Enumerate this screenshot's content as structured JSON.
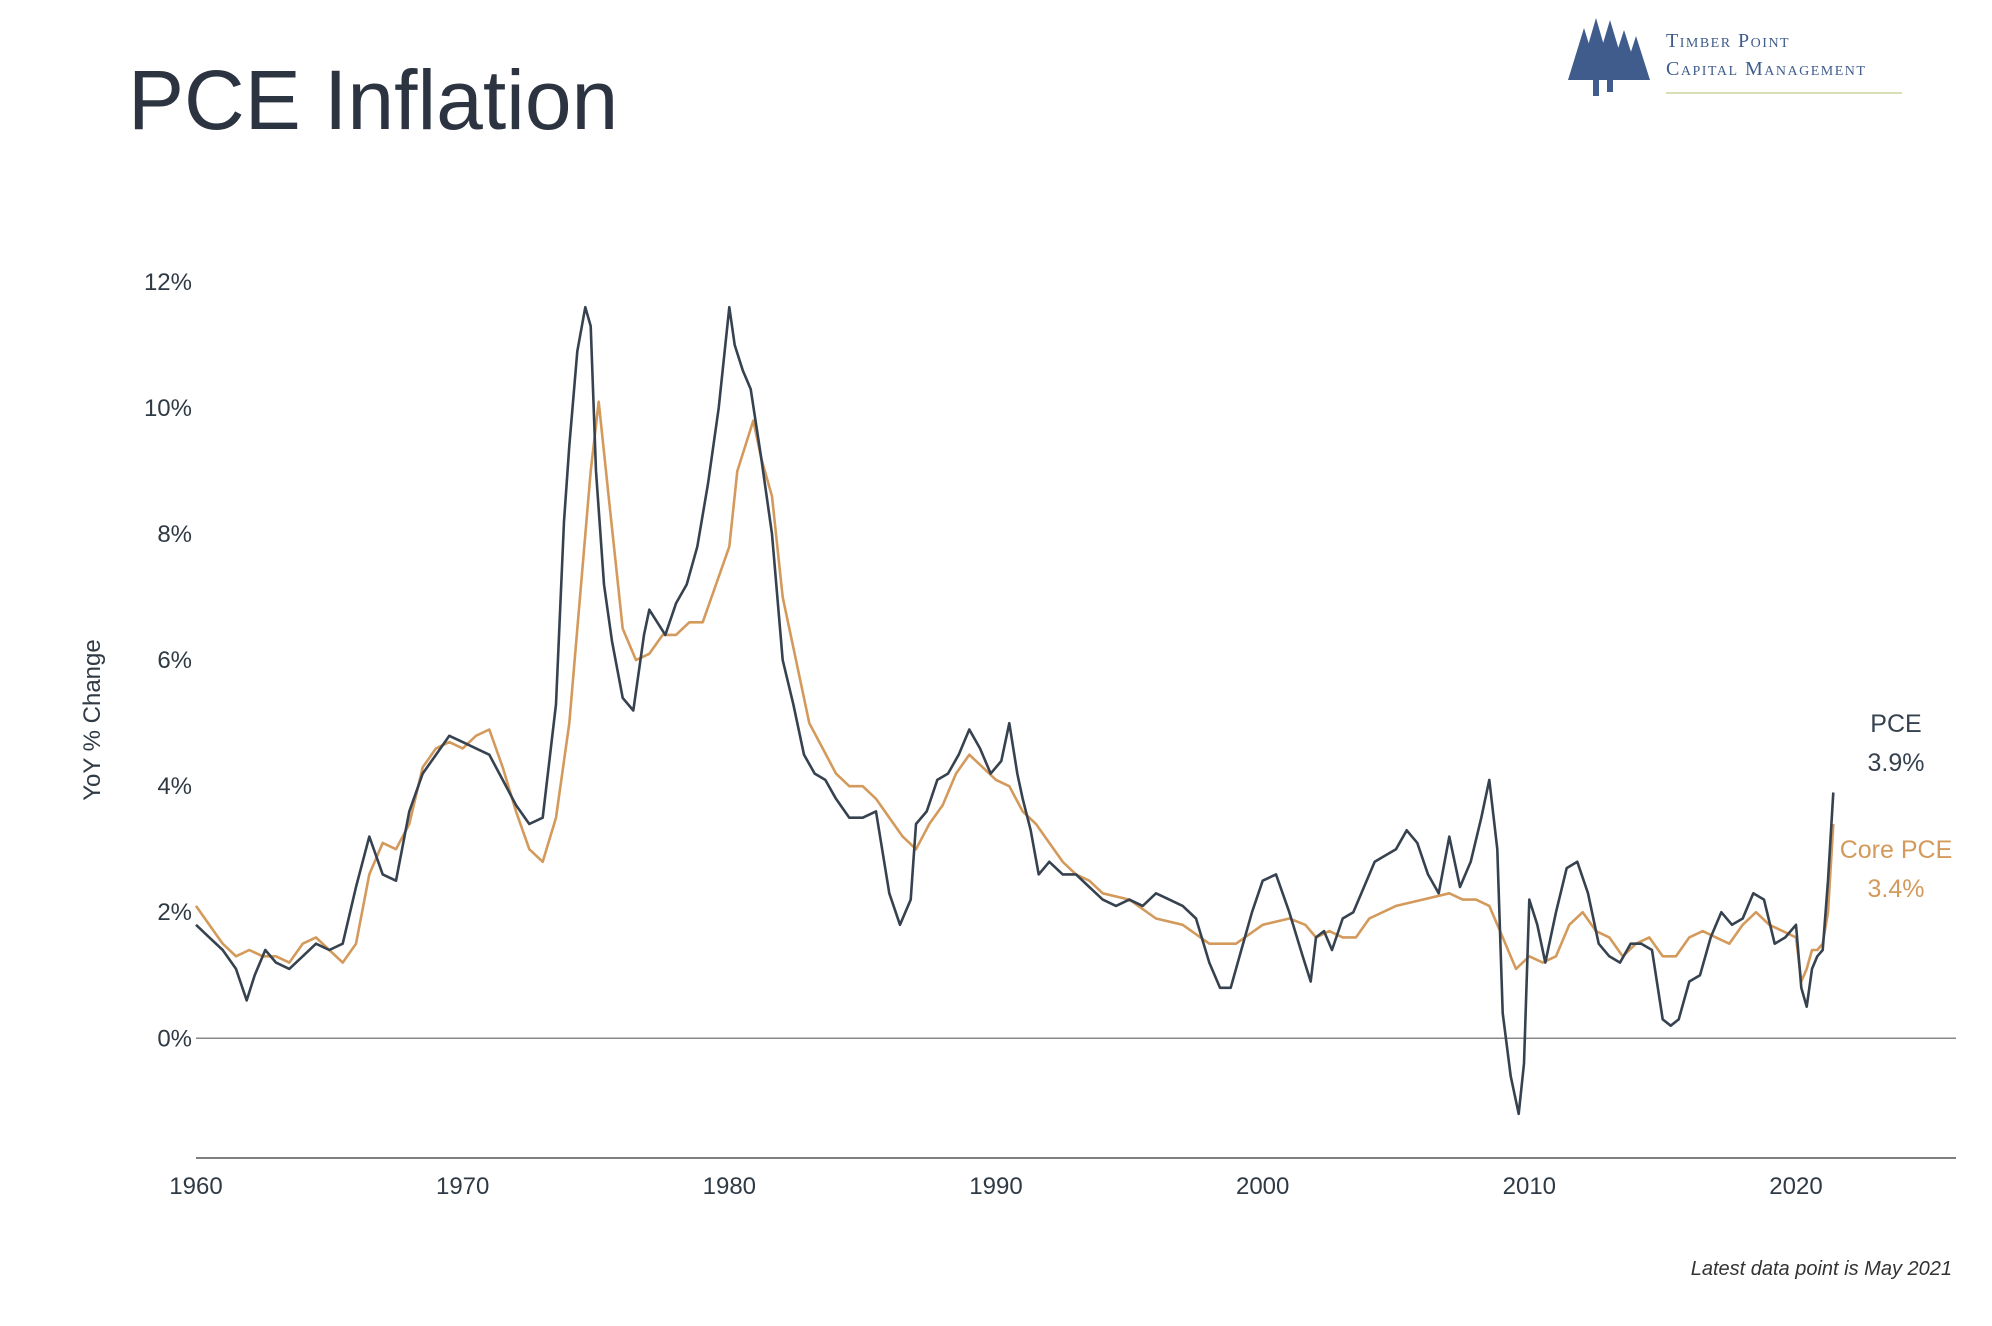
{
  "title": "PCE Inflation",
  "logo": {
    "line1": "Timber Point",
    "line2": "Capital Management",
    "icon": "pine-trees-icon"
  },
  "footnote": "Latest data point is May 2021",
  "colors": {
    "pce": "#36424f",
    "core": "#d39a5c",
    "zero_line": "#888888",
    "axis": "#555555",
    "logo": "#3f5c8c"
  },
  "end_labels": {
    "pce_name": "PCE",
    "pce_value": "3.9%",
    "core_name": "Core PCE",
    "core_value": "3.4%"
  },
  "chart_data": {
    "type": "line",
    "title": "",
    "xlabel": "",
    "ylabel": "YoY % Change",
    "xlim": [
      1960,
      2026
    ],
    "ylim": [
      -1.9,
      12
    ],
    "x_ticks": [
      1960,
      1970,
      1980,
      1990,
      2000,
      2010,
      2020
    ],
    "x_tick_labels": [
      "1960",
      "1970",
      "1980",
      "1990",
      "2000",
      "2010",
      "2020"
    ],
    "y_ticks": [
      0,
      2,
      4,
      6,
      8,
      10,
      12
    ],
    "y_tick_labels": [
      "0%",
      "2%",
      "4%",
      "6%",
      "8%",
      "10%",
      "12%"
    ],
    "grid": false,
    "legend": "none",
    "series": [
      {
        "name": "PCE",
        "x": [
          1960.0,
          1960.5,
          1961.0,
          1961.5,
          1961.9,
          1962.2,
          1962.6,
          1963.0,
          1963.5,
          1964.0,
          1964.5,
          1965.0,
          1965.5,
          1966.0,
          1966.5,
          1967.0,
          1967.5,
          1968.0,
          1968.5,
          1969.0,
          1969.5,
          1970.0,
          1970.5,
          1971.0,
          1971.5,
          1972.0,
          1972.5,
          1973.0,
          1973.5,
          1973.8,
          1974.0,
          1974.3,
          1974.6,
          1974.8,
          1975.0,
          1975.3,
          1975.6,
          1976.0,
          1976.4,
          1976.8,
          1977.0,
          1977.3,
          1977.6,
          1978.0,
          1978.4,
          1978.8,
          1979.2,
          1979.6,
          1980.0,
          1980.2,
          1980.5,
          1980.8,
          1981.2,
          1981.6,
          1982.0,
          1982.4,
          1982.8,
          1983.2,
          1983.6,
          1984.0,
          1984.5,
          1985.0,
          1985.5,
          1986.0,
          1986.4,
          1986.8,
          1987.0,
          1987.4,
          1987.8,
          1988.2,
          1988.6,
          1989.0,
          1989.4,
          1989.8,
          1990.2,
          1990.5,
          1990.8,
          1991.0,
          1991.3,
          1991.6,
          1992.0,
          1992.5,
          1993.0,
          1993.5,
          1994.0,
          1994.5,
          1995.0,
          1995.5,
          1996.0,
          1996.5,
          1997.0,
          1997.5,
          1998.0,
          1998.4,
          1998.8,
          1999.2,
          1999.6,
          2000.0,
          2000.5,
          2001.0,
          2001.5,
          2001.8,
          2002.0,
          2002.3,
          2002.6,
          2003.0,
          2003.4,
          2003.8,
          2004.2,
          2004.6,
          2005.0,
          2005.4,
          2005.8,
          2006.2,
          2006.6,
          2007.0,
          2007.4,
          2007.8,
          2008.2,
          2008.5,
          2008.8,
          2009.0,
          2009.3,
          2009.6,
          2009.8,
          2010.0,
          2010.3,
          2010.6,
          2011.0,
          2011.4,
          2011.8,
          2012.2,
          2012.6,
          2013.0,
          2013.4,
          2013.8,
          2014.2,
          2014.6,
          2015.0,
          2015.3,
          2015.6,
          2016.0,
          2016.4,
          2016.8,
          2017.2,
          2017.6,
          2018.0,
          2018.4,
          2018.8,
          2019.2,
          2019.6,
          2020.0,
          2020.2,
          2020.4,
          2020.6,
          2020.8,
          2021.0,
          2021.2,
          2021.4
        ],
        "values": [
          1.8,
          1.6,
          1.4,
          1.1,
          0.6,
          1.0,
          1.4,
          1.2,
          1.1,
          1.3,
          1.5,
          1.4,
          1.5,
          2.4,
          3.2,
          2.6,
          2.5,
          3.6,
          4.2,
          4.5,
          4.8,
          4.7,
          4.6,
          4.5,
          4.1,
          3.7,
          3.4,
          3.5,
          5.3,
          8.2,
          9.4,
          10.9,
          11.6,
          11.3,
          9.0,
          7.2,
          6.3,
          5.4,
          5.2,
          6.4,
          6.8,
          6.6,
          6.4,
          6.9,
          7.2,
          7.8,
          8.8,
          10.0,
          11.6,
          11.0,
          10.6,
          10.3,
          9.2,
          8.0,
          6.0,
          5.3,
          4.5,
          4.2,
          4.1,
          3.8,
          3.5,
          3.5,
          3.6,
          2.3,
          1.8,
          2.2,
          3.4,
          3.6,
          4.1,
          4.2,
          4.5,
          4.9,
          4.6,
          4.2,
          4.4,
          5.0,
          4.2,
          3.8,
          3.3,
          2.6,
          2.8,
          2.6,
          2.6,
          2.4,
          2.2,
          2.1,
          2.2,
          2.1,
          2.3,
          2.2,
          2.1,
          1.9,
          1.2,
          0.8,
          0.8,
          1.4,
          2.0,
          2.5,
          2.6,
          2.0,
          1.3,
          0.9,
          1.6,
          1.7,
          1.4,
          1.9,
          2.0,
          2.4,
          2.8,
          2.9,
          3.0,
          3.3,
          3.1,
          2.6,
          2.3,
          3.2,
          2.4,
          2.8,
          3.5,
          4.1,
          3.0,
          0.4,
          -0.6,
          -1.2,
          -0.4,
          2.2,
          1.8,
          1.2,
          2.0,
          2.7,
          2.8,
          2.3,
          1.5,
          1.3,
          1.2,
          1.5,
          1.5,
          1.4,
          0.3,
          0.2,
          0.3,
          0.9,
          1.0,
          1.6,
          2.0,
          1.8,
          1.9,
          2.3,
          2.2,
          1.5,
          1.6,
          1.8,
          0.8,
          0.5,
          1.1,
          1.3,
          1.4,
          2.5,
          3.9
        ]
      },
      {
        "name": "Core PCE",
        "x": [
          1960.0,
          1960.5,
          1961.0,
          1961.5,
          1962.0,
          1962.5,
          1963.0,
          1963.5,
          1964.0,
          1964.5,
          1965.0,
          1965.5,
          1966.0,
          1966.5,
          1967.0,
          1967.5,
          1968.0,
          1968.5,
          1969.0,
          1969.5,
          1970.0,
          1970.5,
          1971.0,
          1971.5,
          1972.0,
          1972.5,
          1973.0,
          1973.5,
          1974.0,
          1974.4,
          1974.8,
          1975.1,
          1975.5,
          1976.0,
          1976.5,
          1977.0,
          1977.5,
          1978.0,
          1978.5,
          1979.0,
          1979.5,
          1980.0,
          1980.3,
          1980.6,
          1980.9,
          1981.2,
          1981.6,
          1982.0,
          1982.5,
          1983.0,
          1983.5,
          1984.0,
          1984.5,
          1985.0,
          1985.5,
          1986.0,
          1986.5,
          1987.0,
          1987.5,
          1988.0,
          1988.5,
          1989.0,
          1989.5,
          1990.0,
          1990.5,
          1991.0,
          1991.5,
          1992.0,
          1992.5,
          1993.0,
          1993.5,
          1994.0,
          1995.0,
          1996.0,
          1997.0,
          1998.0,
          1999.0,
          2000.0,
          2001.0,
          2001.6,
          2002.0,
          2002.5,
          2003.0,
          2003.5,
          2004.0,
          2005.0,
          2006.0,
          2007.0,
          2007.5,
          2008.0,
          2008.5,
          2009.0,
          2009.5,
          2010.0,
          2010.5,
          2011.0,
          2011.5,
          2012.0,
          2012.5,
          2013.0,
          2013.5,
          2014.0,
          2014.5,
          2015.0,
          2015.5,
          2016.0,
          2016.5,
          2017.0,
          2017.5,
          2018.0,
          2018.5,
          2019.0,
          2019.5,
          2020.0,
          2020.2,
          2020.4,
          2020.6,
          2020.8,
          2021.0,
          2021.2,
          2021.4
        ],
        "values": [
          2.1,
          1.8,
          1.5,
          1.3,
          1.4,
          1.3,
          1.3,
          1.2,
          1.5,
          1.6,
          1.4,
          1.2,
          1.5,
          2.6,
          3.1,
          3.0,
          3.4,
          4.3,
          4.6,
          4.7,
          4.6,
          4.8,
          4.9,
          4.3,
          3.6,
          3.0,
          2.8,
          3.5,
          5.0,
          7.0,
          9.0,
          10.1,
          8.5,
          6.5,
          6.0,
          6.1,
          6.4,
          6.4,
          6.6,
          6.6,
          7.2,
          7.8,
          9.0,
          9.4,
          9.8,
          9.2,
          8.6,
          7.0,
          6.0,
          5.0,
          4.6,
          4.2,
          4.0,
          4.0,
          3.8,
          3.5,
          3.2,
          3.0,
          3.4,
          3.7,
          4.2,
          4.5,
          4.3,
          4.1,
          4.0,
          3.6,
          3.4,
          3.1,
          2.8,
          2.6,
          2.5,
          2.3,
          2.2,
          1.9,
          1.8,
          1.5,
          1.5,
          1.8,
          1.9,
          1.8,
          1.6,
          1.7,
          1.6,
          1.6,
          1.9,
          2.1,
          2.2,
          2.3,
          2.2,
          2.2,
          2.1,
          1.6,
          1.1,
          1.3,
          1.2,
          1.3,
          1.8,
          2.0,
          1.7,
          1.6,
          1.3,
          1.5,
          1.6,
          1.3,
          1.3,
          1.6,
          1.7,
          1.6,
          1.5,
          1.8,
          2.0,
          1.8,
          1.7,
          1.6,
          0.9,
          1.1,
          1.4,
          1.4,
          1.5,
          2.0,
          3.4
        ]
      }
    ]
  }
}
